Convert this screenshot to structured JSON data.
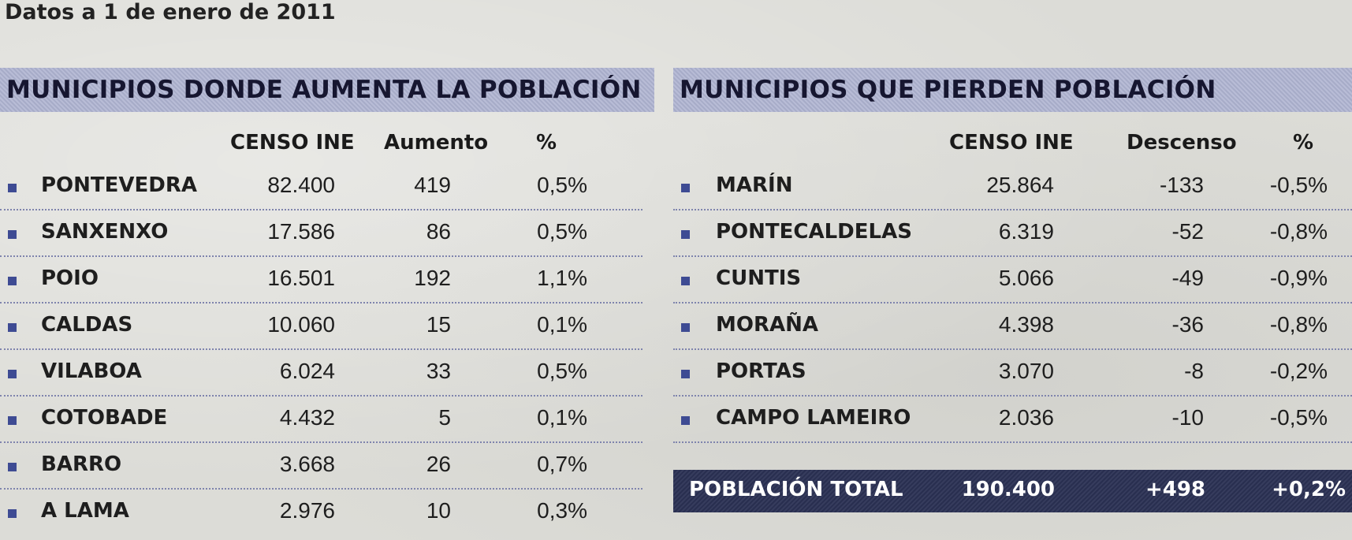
{
  "subtitle": "Datos a 1 de enero de 2011",
  "left": {
    "title": "MUNICIPIOS DONDE AUMENTA LA POBLACIÓN",
    "headers": {
      "censo": "CENSO INE",
      "change": "Aumento",
      "pct": "%"
    },
    "rows": [
      {
        "name": "PONTEVEDRA",
        "censo": "82.400",
        "change": "419",
        "pct": "0,5%"
      },
      {
        "name": "SANXENXO",
        "censo": "17.586",
        "change": "86",
        "pct": "0,5%"
      },
      {
        "name": "POIO",
        "censo": "16.501",
        "change": "192",
        "pct": "1,1%"
      },
      {
        "name": "CALDAS",
        "censo": "10.060",
        "change": "15",
        "pct": "0,1%"
      },
      {
        "name": "VILABOA",
        "censo": "6.024",
        "change": "33",
        "pct": "0,5%"
      },
      {
        "name": "COTOBADE",
        "censo": "4.432",
        "change": "5",
        "pct": "0,1%"
      },
      {
        "name": "BARRO",
        "censo": "3.668",
        "change": "26",
        "pct": "0,7%"
      },
      {
        "name": "A LAMA",
        "censo": "2.976",
        "change": "10",
        "pct": "0,3%"
      }
    ]
  },
  "right": {
    "title": "MUNICIPIOS QUE PIERDEN POBLACIÓN",
    "headers": {
      "censo": "CENSO INE",
      "change": "Descenso",
      "pct": "%"
    },
    "rows": [
      {
        "name": "MARÍN",
        "censo": "25.864",
        "change": "-133",
        "pct": "-0,5%"
      },
      {
        "name": "PONTECALDELAS",
        "censo": "6.319",
        "change": "-52",
        "pct": "-0,8%"
      },
      {
        "name": "CUNTIS",
        "censo": "5.066",
        "change": "-49",
        "pct": "-0,9%"
      },
      {
        "name": "MORAÑA",
        "censo": "4.398",
        "change": "-36",
        "pct": "-0,8%"
      },
      {
        "name": "PORTAS",
        "censo": "3.070",
        "change": "-8",
        "pct": "-0,2%"
      },
      {
        "name": "CAMPO LAMEIRO",
        "censo": "2.036",
        "change": "-10",
        "pct": "-0,5%"
      }
    ],
    "total": {
      "label": "POBLACIÓN TOTAL",
      "censo": "190.400",
      "change": "+498",
      "pct": "+0,2%"
    }
  },
  "colors": {
    "header_band": "#aeb3d0",
    "bullet": "#3e4b93",
    "total_bar": "#2b3154",
    "divider": "#7f84ad"
  }
}
